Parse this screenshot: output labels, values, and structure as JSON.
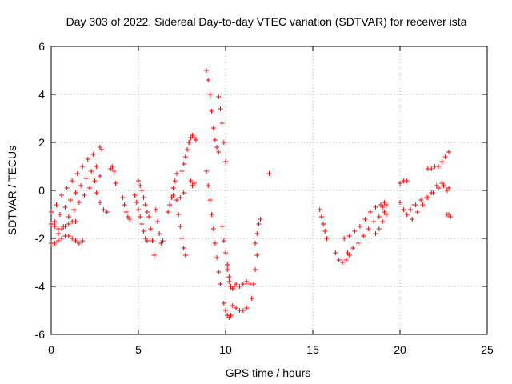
{
  "chart_data": {
    "type": "scatter",
    "title": "Day 303 of 2022, Sidereal Day-to-day VTEC variation (SDTVAR) for receiver ista",
    "xlabel": "GPS time / hours",
    "ylabel": "SDTVAR / TECUs",
    "xlim": [
      0,
      25
    ],
    "ylim": [
      -6,
      6
    ],
    "xticks": [
      "0",
      "5",
      "10",
      "15",
      "20",
      "25"
    ],
    "yticks": [
      "-6",
      "-4",
      "-2",
      "0",
      "2",
      "4",
      "6"
    ],
    "grid": true,
    "marker": "+",
    "color": "#ff0000",
    "series": [
      {
        "x": [
          0.0,
          0.3,
          0.6,
          0.9,
          1.2,
          1.5,
          1.8,
          2.1,
          2.4
        ],
        "y": [
          -0.9,
          -0.6,
          -0.2,
          0.1,
          0.4,
          0.7,
          1.0,
          1.3,
          1.5
        ]
      },
      {
        "x": [
          0.2,
          0.5,
          0.8,
          1.1,
          1.4,
          1.7,
          2.0,
          2.3,
          2.6
        ],
        "y": [
          -1.3,
          -1.0,
          -0.7,
          -0.4,
          -0.1,
          0.2,
          0.5,
          0.8,
          1.0
        ]
      },
      {
        "x": [
          0.4,
          0.7,
          1.0,
          1.3,
          1.6,
          1.9,
          2.2,
          2.5,
          2.8
        ],
        "y": [
          -1.8,
          -1.5,
          -1.1,
          -0.8,
          -0.5,
          -0.2,
          0.1,
          0.4,
          0.6
        ]
      },
      {
        "x": [
          0.0,
          0.2,
          0.4,
          0.6,
          0.8,
          1.0,
          1.2,
          1.4,
          1.6,
          1.8
        ],
        "y": [
          -2.2,
          -2.2,
          -2.1,
          -2.0,
          -1.9,
          -1.9,
          -2.0,
          -2.1,
          -2.2,
          -2.1
        ]
      },
      {
        "x": [
          0.0,
          0.2,
          0.4,
          0.6,
          0.8,
          1.0,
          1.2,
          1.4
        ],
        "y": [
          -1.4,
          -1.5,
          -1.6,
          -1.6,
          -1.5,
          -1.4,
          -1.3,
          -1.3
        ]
      },
      {
        "x": [
          2.6,
          2.8,
          3.0,
          3.2
        ],
        "y": [
          -0.1,
          -0.5,
          -0.8,
          -0.9
        ]
      },
      {
        "x": [
          2.8,
          2.9
        ],
        "y": [
          1.8,
          1.7
        ]
      },
      {
        "x": [
          3.4,
          3.5,
          3.6,
          3.7
        ],
        "y": [
          0.9,
          1.0,
          0.8,
          0.3
        ]
      },
      {
        "x": [
          4.1,
          4.2,
          4.3,
          4.4,
          4.5
        ],
        "y": [
          -0.3,
          -0.6,
          -0.9,
          -1.1,
          -1.2
        ]
      },
      {
        "x": [
          4.8,
          4.9,
          5.0,
          5.1,
          5.2,
          5.3,
          5.4,
          5.5
        ],
        "y": [
          -0.2,
          -0.5,
          -0.8,
          -1.1,
          -1.4,
          -1.7,
          -2.0,
          -2.1
        ]
      },
      {
        "x": [
          5.0,
          5.1,
          5.2,
          5.3,
          5.4,
          5.5,
          5.6
        ],
        "y": [
          0.4,
          0.2,
          0.0,
          -0.3,
          -0.6,
          -0.9,
          -1.1
        ]
      },
      {
        "x": [
          5.7,
          5.8,
          5.9
        ],
        "y": [
          -1.6,
          -2.1,
          -2.7
        ]
      },
      {
        "x": [
          6.0,
          6.1,
          6.2,
          6.3,
          6.4
        ],
        "y": [
          -0.8,
          -1.3,
          -1.8,
          -2.2,
          -2.1
        ]
      },
      {
        "x": [
          6.7,
          6.8,
          6.9,
          7.0,
          7.1,
          7.2
        ],
        "y": [
          -0.9,
          -0.6,
          -0.3,
          0.1,
          0.4,
          0.7
        ]
      },
      {
        "x": [
          7.0,
          7.2,
          7.4,
          7.6
        ],
        "y": [
          -0.2,
          -0.4,
          -0.3,
          -0.1
        ]
      },
      {
        "x": [
          7.3,
          7.4,
          7.5,
          7.6,
          7.7
        ],
        "y": [
          -1.0,
          -1.5,
          -2.0,
          -2.4,
          -2.7
        ]
      },
      {
        "x": [
          7.5,
          7.6,
          7.7,
          7.8,
          7.9
        ],
        "y": [
          0.8,
          1.1,
          1.4,
          1.7,
          2.0
        ]
      },
      {
        "x": [
          7.9,
          8.0,
          8.1,
          8.2,
          8.3
        ],
        "y": [
          2.0,
          2.2,
          2.3,
          2.2,
          2.1
        ]
      },
      {
        "x": [
          8.0,
          8.1,
          8.2
        ],
        "y": [
          0.4,
          0.2,
          0.3
        ]
      },
      {
        "x": [
          8.9,
          9.0,
          9.1,
          9.2,
          9.3,
          9.4,
          9.5,
          9.6
        ],
        "y": [
          5.0,
          4.6,
          4.0,
          3.3,
          2.6,
          2.1,
          1.8,
          1.6
        ]
      },
      {
        "x": [
          8.9,
          9.0,
          9.1,
          9.2,
          9.3,
          9.4,
          9.5,
          9.6,
          9.7
        ],
        "y": [
          0.8,
          0.2,
          -0.4,
          -1.0,
          -1.6,
          -2.2,
          -2.8,
          -3.4,
          -3.9
        ]
      },
      {
        "x": [
          9.6,
          9.7,
          9.8,
          9.9,
          10.0
        ],
        "y": [
          3.9,
          3.4,
          2.8,
          2.0,
          1.2
        ]
      },
      {
        "x": [
          9.8,
          9.9,
          10.0,
          10.1,
          10.2
        ],
        "y": [
          -1.5,
          -2.1,
          -2.6,
          -3.1,
          -3.6
        ]
      },
      {
        "x": [
          9.9,
          10.0,
          10.1,
          10.2,
          10.3
        ],
        "y": [
          -4.7,
          -5.0,
          -5.2,
          -5.3,
          -5.2
        ]
      },
      {
        "x": [
          10.1,
          10.2,
          10.3,
          10.4,
          10.5
        ],
        "y": [
          -3.3,
          -3.8,
          -4.0,
          -4.1,
          -4.0
        ]
      },
      {
        "x": [
          10.4,
          10.6,
          10.8,
          11.0,
          11.2
        ],
        "y": [
          -4.8,
          -4.9,
          -5.0,
          -5.0,
          -4.9
        ]
      },
      {
        "x": [
          10.6,
          10.8,
          11.0,
          11.2,
          11.4
        ],
        "y": [
          -3.9,
          -4.0,
          -3.9,
          -3.8,
          -3.9
        ]
      },
      {
        "x": [
          11.5,
          11.6,
          11.7,
          11.8
        ],
        "y": [
          -4.5,
          -3.9,
          -3.3,
          -2.7
        ]
      },
      {
        "x": [
          11.7,
          11.8,
          11.9,
          12.0
        ],
        "y": [
          -2.2,
          -1.8,
          -1.4,
          -1.2
        ]
      },
      {
        "x": [
          12.5
        ],
        "y": [
          0.7
        ]
      },
      {
        "x": [
          15.4,
          15.5,
          15.6,
          15.7,
          15.8
        ],
        "y": [
          -0.8,
          -1.1,
          -1.4,
          -1.7,
          -2.0
        ]
      },
      {
        "x": [
          16.3,
          16.5,
          16.7,
          16.9,
          17.1
        ],
        "y": [
          -2.6,
          -2.9,
          -3.0,
          -2.9,
          -2.7
        ]
      },
      {
        "x": [
          16.8,
          17.1,
          17.4,
          17.7,
          18.0,
          18.3,
          18.6,
          18.9,
          19.2
        ],
        "y": [
          -2.0,
          -1.9,
          -1.7,
          -1.5,
          -1.2,
          -0.9,
          -0.7,
          -0.6,
          -0.6
        ]
      },
      {
        "x": [
          17.0,
          17.3,
          17.6,
          17.9,
          18.2,
          18.5,
          18.8,
          19.1
        ],
        "y": [
          -2.6,
          -2.4,
          -2.2,
          -1.9,
          -1.6,
          -1.3,
          -1.1,
          -0.9
        ]
      },
      {
        "x": [
          18.6,
          18.8,
          19.0,
          19.2
        ],
        "y": [
          -1.8,
          -1.6,
          -1.3,
          -1.0
        ]
      },
      {
        "x": [
          19.0,
          19.1,
          19.2
        ],
        "y": [
          -0.7,
          -0.5,
          -0.6
        ]
      },
      {
        "x": [
          20.0,
          20.2,
          20.4
        ],
        "y": [
          0.3,
          0.4,
          0.4
        ]
      },
      {
        "x": [
          20.0,
          20.2,
          20.4,
          20.6,
          20.8
        ],
        "y": [
          -0.5,
          -0.8,
          -1.0,
          -0.8,
          -0.6
        ]
      },
      {
        "x": [
          20.7,
          21.0,
          21.3,
          21.6,
          21.9,
          22.2,
          22.5,
          22.8
        ],
        "y": [
          -1.2,
          -0.9,
          -0.6,
          -0.3,
          -0.1,
          0.1,
          0.2,
          0.1
        ]
      },
      {
        "x": [
          20.9,
          21.2,
          21.5,
          21.8,
          22.1,
          22.4,
          22.7
        ],
        "y": [
          -0.6,
          -0.4,
          -0.3,
          -0.1,
          0.2,
          0.3,
          0.0
        ]
      },
      {
        "x": [
          21.6,
          21.8,
          22.0,
          22.2,
          22.4,
          22.6,
          22.8
        ],
        "y": [
          0.9,
          0.9,
          1.0,
          1.0,
          1.2,
          1.4,
          1.6
        ]
      },
      {
        "x": [
          22.7,
          22.8,
          22.9
        ],
        "y": [
          -1.0,
          -1.0,
          -1.1
        ]
      }
    ]
  }
}
